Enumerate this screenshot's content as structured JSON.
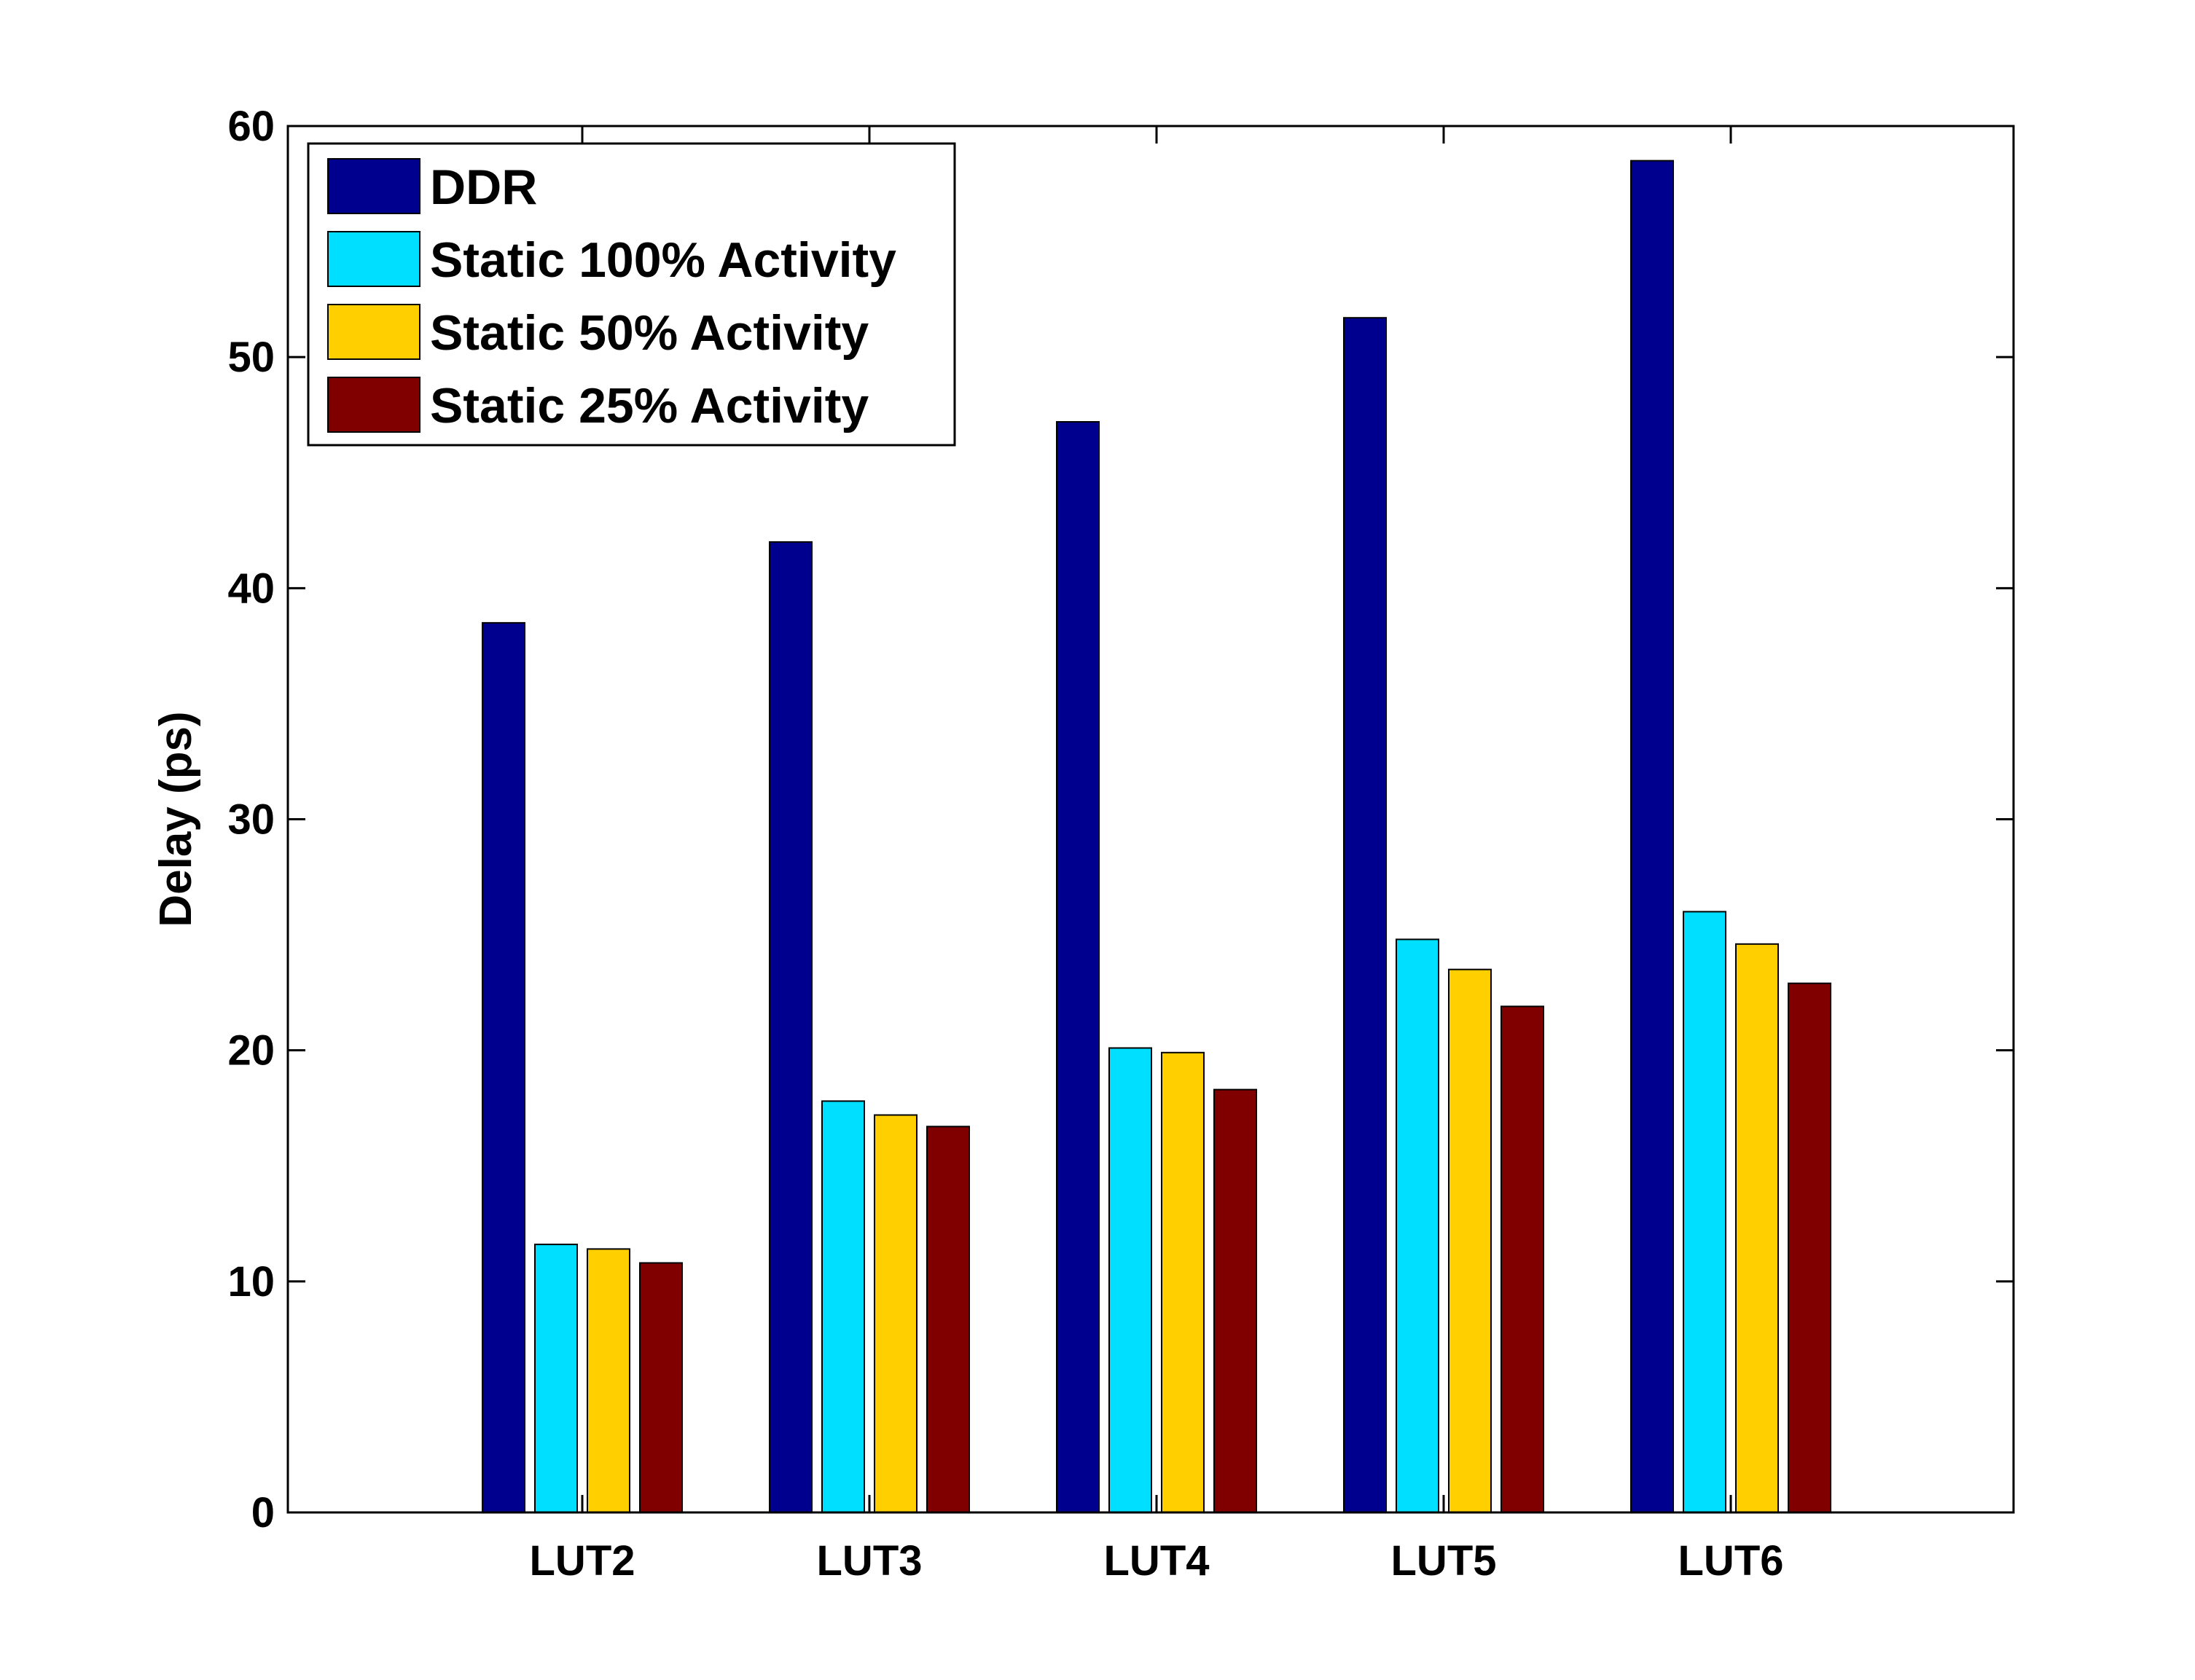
{
  "chart_data": {
    "type": "bar",
    "title": "",
    "xlabel": "",
    "ylabel": "Delay (ps)",
    "ylim": [
      0,
      60
    ],
    "yticks": [
      "0",
      "10",
      "20",
      "30",
      "40",
      "50",
      "60"
    ],
    "categories": [
      "LUT2",
      "LUT3",
      "LUT4",
      "LUT5",
      "LUT6"
    ],
    "legend_position": "top-left",
    "grid": false,
    "series": [
      {
        "name": "DDR",
        "color": "#00008f",
        "values": [
          38.5,
          42.0,
          47.2,
          51.7,
          58.5
        ]
      },
      {
        "name": "Static 100% Activity",
        "color": "#00dfff",
        "values": [
          11.6,
          17.8,
          20.1,
          24.8,
          26.0
        ]
      },
      {
        "name": "Static 50% Activity",
        "color": "#ffcf00",
        "values": [
          11.4,
          17.2,
          19.9,
          23.5,
          24.6
        ]
      },
      {
        "name": "Static 25% Activity",
        "color": "#800000",
        "values": [
          10.8,
          16.7,
          18.3,
          21.9,
          22.9
        ]
      }
    ]
  }
}
